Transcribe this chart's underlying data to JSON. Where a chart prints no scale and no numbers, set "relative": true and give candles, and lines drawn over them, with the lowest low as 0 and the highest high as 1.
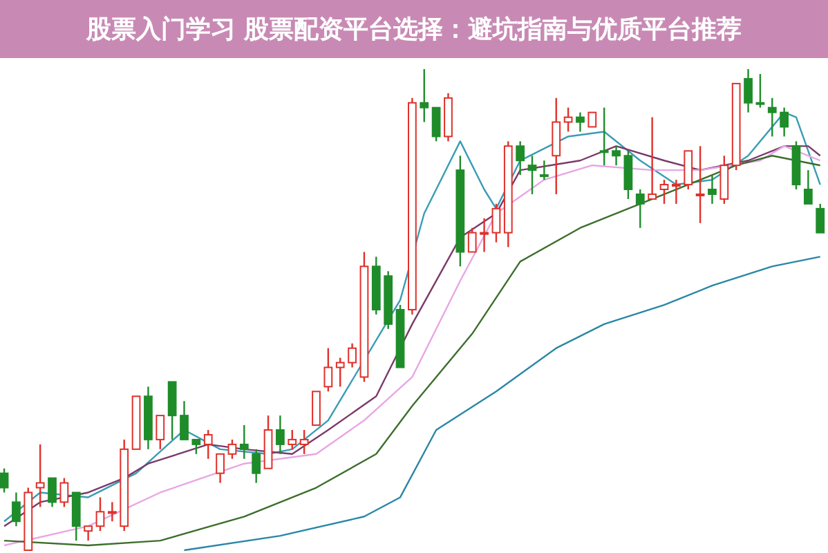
{
  "chart_data": {
    "type": "candlestick",
    "relative": true,
    "title": "股票入门学习 股票配资平台选择：避坑指南与优质平台推荐",
    "categories": [
      null,
      null,
      null,
      null,
      null,
      null,
      null,
      null,
      null,
      null,
      null,
      null,
      null,
      null,
      null,
      null,
      null,
      null,
      null,
      null,
      null,
      null,
      null,
      null,
      null,
      null,
      null,
      null,
      null,
      null,
      null,
      null,
      null,
      null,
      null,
      null,
      null,
      null,
      null,
      null,
      null,
      null,
      null,
      null,
      null,
      null,
      null,
      null,
      null,
      null,
      null,
      null,
      null,
      null,
      null,
      null,
      null,
      null,
      null,
      null,
      null,
      null,
      null,
      null,
      null,
      null,
      null,
      null,
      null
    ],
    "ohlc": [
      [
        0.16,
        0.17,
        0.12,
        0.13
      ],
      [
        0.1,
        0.12,
        0.05,
        0.06
      ],
      [
        0.0,
        0.13,
        0.0,
        0.12
      ],
      [
        0.13,
        0.22,
        0.09,
        0.14
      ],
      [
        0.15,
        0.15,
        0.09,
        0.1
      ],
      [
        0.1,
        0.15,
        0.09,
        0.14
      ],
      [
        0.12,
        0.12,
        0.02,
        0.05
      ],
      [
        0.04,
        0.05,
        0.02,
        0.05
      ],
      [
        0.05,
        0.11,
        0.04,
        0.08
      ],
      [
        0.08,
        0.1,
        0.06,
        0.08
      ],
      [
        0.05,
        0.23,
        0.04,
        0.21
      ],
      [
        0.21,
        0.32,
        0.21,
        0.32
      ],
      [
        0.32,
        0.34,
        0.21,
        0.23
      ],
      [
        0.23,
        0.28,
        0.21,
        0.28
      ],
      [
        0.35,
        0.35,
        0.23,
        0.28
      ],
      [
        0.28,
        0.31,
        0.23,
        0.23
      ],
      [
        0.23,
        0.23,
        0.2,
        0.22
      ],
      [
        0.22,
        0.25,
        0.19,
        0.24
      ],
      [
        0.16,
        0.2,
        0.14,
        0.2
      ],
      [
        0.2,
        0.23,
        0.19,
        0.22
      ],
      [
        0.22,
        0.26,
        0.19,
        0.21
      ],
      [
        0.2,
        0.21,
        0.14,
        0.16
      ],
      [
        0.17,
        0.28,
        0.17,
        0.25
      ],
      [
        0.25,
        0.28,
        0.2,
        0.22
      ],
      [
        0.22,
        0.25,
        0.21,
        0.23
      ],
      [
        0.22,
        0.25,
        0.2,
        0.23
      ],
      [
        0.26,
        0.33,
        0.26,
        0.33
      ],
      [
        0.34,
        0.42,
        0.33,
        0.38
      ],
      [
        0.38,
        0.4,
        0.34,
        0.39
      ],
      [
        0.39,
        0.43,
        0.38,
        0.42
      ],
      [
        0.36,
        0.62,
        0.35,
        0.59
      ],
      [
        0.59,
        0.61,
        0.49,
        0.5
      ],
      [
        0.57,
        0.58,
        0.46,
        0.47
      ],
      [
        0.5,
        0.51,
        0.38,
        0.38
      ],
      [
        0.5,
        0.94,
        0.49,
        0.93
      ],
      [
        0.93,
        1.0,
        0.89,
        0.92
      ],
      [
        0.92,
        0.92,
        0.85,
        0.86
      ],
      [
        0.86,
        0.95,
        0.85,
        0.94
      ],
      [
        0.79,
        0.82,
        0.59,
        0.62
      ],
      [
        0.62,
        0.67,
        0.62,
        0.66
      ],
      [
        0.66,
        0.69,
        0.62,
        0.66
      ],
      [
        0.66,
        0.72,
        0.64,
        0.71
      ],
      [
        0.66,
        0.85,
        0.63,
        0.84
      ],
      [
        0.84,
        0.85,
        0.78,
        0.81
      ],
      [
        0.8,
        0.82,
        0.74,
        0.79
      ],
      [
        0.78,
        0.81,
        0.77,
        0.78
      ],
      [
        0.82,
        0.94,
        0.74,
        0.89
      ],
      [
        0.89,
        0.92,
        0.87,
        0.9
      ],
      [
        0.9,
        0.91,
        0.87,
        0.89
      ],
      [
        0.88,
        0.91,
        0.88,
        0.91
      ],
      [
        0.83,
        0.92,
        0.8,
        0.83
      ],
      [
        0.83,
        0.84,
        0.8,
        0.82
      ],
      [
        0.82,
        0.83,
        0.73,
        0.75
      ],
      [
        0.74,
        0.75,
        0.67,
        0.72
      ],
      [
        0.73,
        0.9,
        0.73,
        0.74
      ],
      [
        0.75,
        0.77,
        0.72,
        0.76
      ],
      [
        0.76,
        0.77,
        0.72,
        0.76
      ],
      [
        0.76,
        0.83,
        0.75,
        0.83
      ],
      [
        0.74,
        0.84,
        0.68,
        0.74
      ],
      [
        0.75,
        0.78,
        0.72,
        0.74
      ],
      [
        0.73,
        0.82,
        0.72,
        0.8
      ],
      [
        0.8,
        0.97,
        0.79,
        0.97
      ],
      [
        0.98,
        1.0,
        0.91,
        0.93
      ],
      [
        0.93,
        0.99,
        0.92,
        0.93
      ],
      [
        0.92,
        0.94,
        0.86,
        0.91
      ],
      [
        0.91,
        0.92,
        0.86,
        0.88
      ],
      [
        0.84,
        0.85,
        0.75,
        0.76
      ],
      [
        0.75,
        0.79,
        0.72,
        0.72
      ],
      [
        0.71,
        0.72,
        0.66,
        0.66
      ]
    ],
    "colors": [
      "#1f8c2a",
      "#1f8c2a",
      "#e0302a",
      "#e0302a",
      "#1f8c2a",
      "#e0302a",
      "#1f8c2a",
      "#e0302a",
      "#e0302a",
      "#e0302a",
      "#e0302a",
      "#e0302a",
      "#1f8c2a",
      "#e0302a",
      "#1f8c2a",
      "#1f8c2a",
      "#1f8c2a",
      "#e0302a",
      "#e0302a",
      "#e0302a",
      "#1f8c2a",
      "#1f8c2a",
      "#e0302a",
      "#1f8c2a",
      "#e0302a",
      "#e0302a",
      "#e0302a",
      "#e0302a",
      "#e0302a",
      "#e0302a",
      "#e0302a",
      "#1f8c2a",
      "#1f8c2a",
      "#1f8c2a",
      "#e0302a",
      "#1f8c2a",
      "#1f8c2a",
      "#e0302a",
      "#1f8c2a",
      "#e0302a",
      "#e0302a",
      "#e0302a",
      "#e0302a",
      "#1f8c2a",
      "#1f8c2a",
      "#1f8c2a",
      "#e0302a",
      "#e0302a",
      "#1f8c2a",
      "#e0302a",
      "#1f8c2a",
      "#1f8c2a",
      "#1f8c2a",
      "#1f8c2a",
      "#e0302a",
      "#e0302a",
      "#e0302a",
      "#e0302a",
      "#e0302a",
      "#1f8c2a",
      "#e0302a",
      "#e0302a",
      "#1f8c2a",
      "#1f8c2a",
      "#1f8c2a",
      "#1f8c2a",
      "#1f8c2a",
      "#1f8c2a",
      "#1f8c2a"
    ],
    "series": [
      {
        "type": "line",
        "color": "#3a9cb4",
        "values": [
          0.06,
          null,
          null,
          0.12,
          null,
          null,
          null,
          0.11,
          null,
          null,
          null,
          0.16,
          null,
          null,
          null,
          0.25,
          null,
          null,
          0.21,
          null,
          null,
          null,
          0.2,
          null,
          0.21,
          null,
          null,
          0.27,
          null,
          null,
          null,
          null,
          null,
          0.52,
          null,
          0.7,
          null,
          null,
          0.85,
          null,
          0.75,
          0.71,
          null,
          0.81,
          null,
          null,
          null,
          0.86,
          null,
          null,
          0.87,
          null,
          null,
          0.81,
          null,
          null,
          0.76,
          null,
          null,
          0.77,
          null,
          null,
          0.82,
          null,
          null,
          0.91,
          0.9,
          null,
          0.76
        ]
      },
      {
        "type": "line",
        "color": "#7a3a6a",
        "values": [
          0.05,
          null,
          null,
          0.1,
          null,
          null,
          null,
          0.12,
          null,
          null,
          0.15,
          null,
          0.18,
          null,
          null,
          null,
          null,
          0.22,
          null,
          null,
          0.21,
          null,
          null,
          null,
          0.2,
          null,
          null,
          0.25,
          null,
          null,
          null,
          0.32,
          null,
          null,
          0.47,
          null,
          null,
          null,
          0.65,
          null,
          null,
          0.7,
          null,
          0.79,
          null,
          null,
          null,
          null,
          0.81,
          null,
          null,
          0.84,
          null,
          null,
          null,
          0.81,
          null,
          null,
          0.79,
          null,
          null,
          null,
          0.81,
          null,
          null,
          0.84,
          null,
          0.84,
          0.82
        ]
      },
      {
        "type": "line",
        "color": "#e8a6e4",
        "values": [
          0.01,
          null,
          null,
          null,
          null,
          null,
          null,
          0.05,
          null,
          null,
          null,
          null,
          null,
          0.12,
          null,
          null,
          null,
          null,
          null,
          null,
          0.18,
          null,
          null,
          null,
          null,
          null,
          0.2,
          null,
          null,
          null,
          0.27,
          null,
          null,
          null,
          0.36,
          null,
          null,
          null,
          0.56,
          null,
          null,
          0.7,
          null,
          null,
          null,
          0.77,
          null,
          null,
          null,
          0.8,
          null,
          null,
          null,
          null,
          0.79,
          null,
          null,
          null,
          0.79,
          null,
          null,
          null,
          null,
          0.81,
          null,
          0.84,
          null,
          null,
          0.81
        ]
      },
      {
        "type": "line",
        "color": "#3c6e2c",
        "values": [
          0.02,
          null,
          null,
          null,
          null,
          null,
          null,
          0.01,
          null,
          null,
          null,
          null,
          null,
          0.02,
          null,
          null,
          null,
          null,
          null,
          null,
          0.07,
          null,
          null,
          null,
          null,
          null,
          0.13,
          null,
          null,
          null,
          null,
          0.2,
          null,
          null,
          0.3,
          null,
          null,
          null,
          null,
          0.45,
          null,
          null,
          null,
          0.6,
          null,
          null,
          null,
          null,
          0.67,
          null,
          null,
          null,
          null,
          0.72,
          null,
          null,
          null,
          0.76,
          null,
          null,
          null,
          0.8,
          null,
          null,
          0.82,
          null,
          null,
          null,
          0.8
        ]
      },
      {
        "type": "line",
        "color": "#2a86a6",
        "values": [
          null,
          null,
          null,
          null,
          null,
          null,
          null,
          null,
          null,
          null,
          null,
          null,
          null,
          null,
          null,
          0.0,
          null,
          null,
          null,
          null,
          null,
          null,
          null,
          0.03,
          null,
          null,
          null,
          null,
          null,
          null,
          0.07,
          null,
          null,
          0.11,
          null,
          null,
          0.25,
          null,
          null,
          null,
          null,
          0.33,
          null,
          null,
          null,
          null,
          0.42,
          null,
          null,
          null,
          0.47,
          null,
          null,
          null,
          null,
          0.51,
          null,
          null,
          null,
          0.55,
          null,
          null,
          null,
          null,
          0.59,
          null,
          null,
          null,
          0.61
        ]
      }
    ]
  }
}
